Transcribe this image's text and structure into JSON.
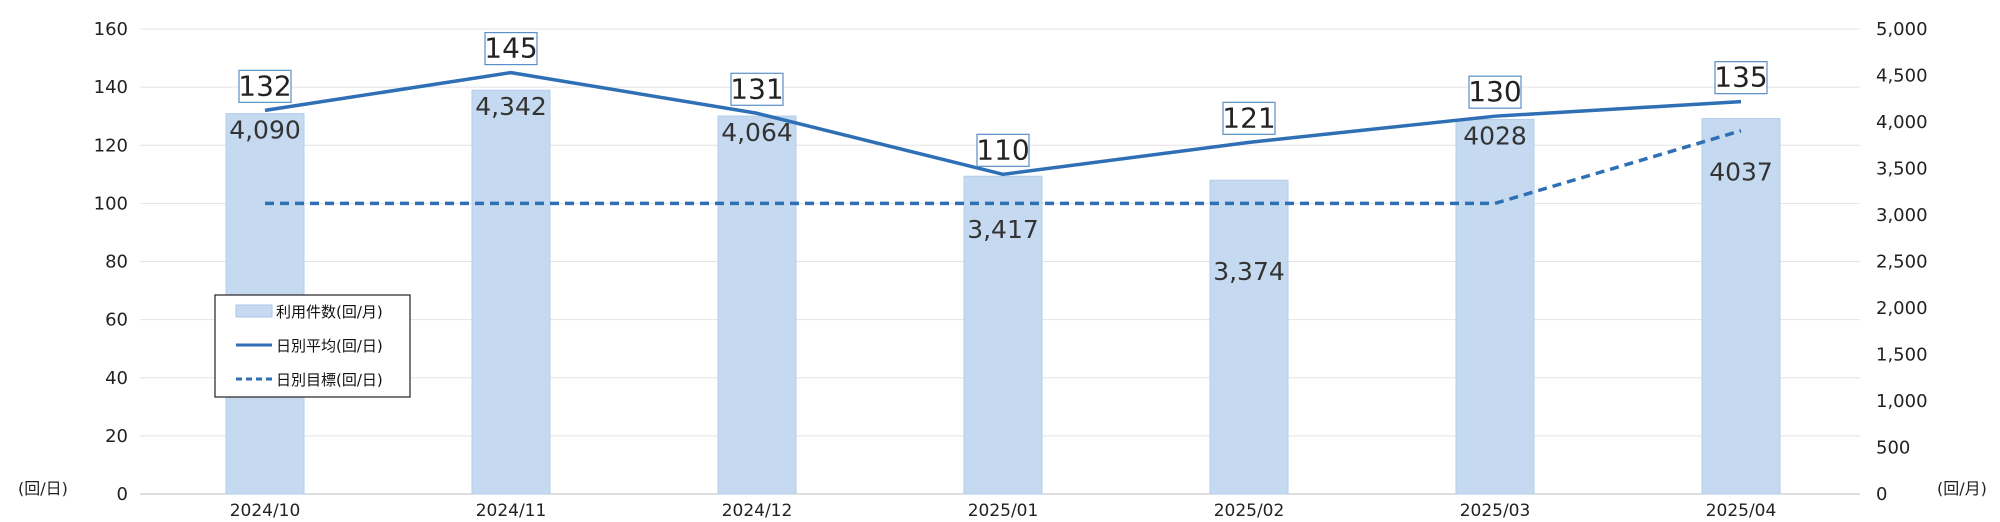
{
  "chart_data": {
    "type": "bar",
    "categories": [
      "2024/10",
      "2024/11",
      "2024/12",
      "2025/01",
      "2025/02",
      "2025/03",
      "2025/04"
    ],
    "series": [
      {
        "name": "利用件数(回/月)",
        "type": "bar",
        "axis": "right",
        "color": "#c5daf0",
        "values": [
          4090,
          4342,
          4064,
          3417,
          3374,
          4028,
          4037
        ],
        "labels": [
          "4,090",
          "4,342",
          "4,064",
          "3,417",
          "3,374",
          "4028",
          "4037"
        ]
      },
      {
        "name": "日別平均(回/日)",
        "type": "line",
        "axis": "left",
        "color": "#2e6fb5",
        "values": [
          132,
          145,
          131,
          110,
          121,
          130,
          135
        ],
        "labels": [
          "132",
          "145",
          "131",
          "110",
          "121",
          "130",
          "135"
        ]
      },
      {
        "name": "日別目標(回/日)",
        "type": "line",
        "style": "dashed",
        "axis": "left",
        "color": "#2e6fb5",
        "values": [
          100,
          100,
          100,
          100,
          100,
          100,
          125
        ]
      }
    ],
    "y_left": {
      "range": [
        0,
        160
      ],
      "ticks": [
        0,
        20,
        40,
        60,
        80,
        100,
        120,
        140,
        160
      ],
      "unit": "(回/日)"
    },
    "y_right": {
      "range": [
        0,
        5000
      ],
      "ticks": [
        0,
        500,
        1000,
        1500,
        2000,
        2500,
        3000,
        3500,
        4000,
        4500,
        5000
      ],
      "tick_labels": [
        "0",
        "500",
        "1,000",
        "1,500",
        "2,000",
        "2,500",
        "3,000",
        "3,500",
        "4,000",
        "4,500",
        "5,000"
      ],
      "unit": "(回/月)"
    },
    "grid": true,
    "legend": "inside-left"
  }
}
